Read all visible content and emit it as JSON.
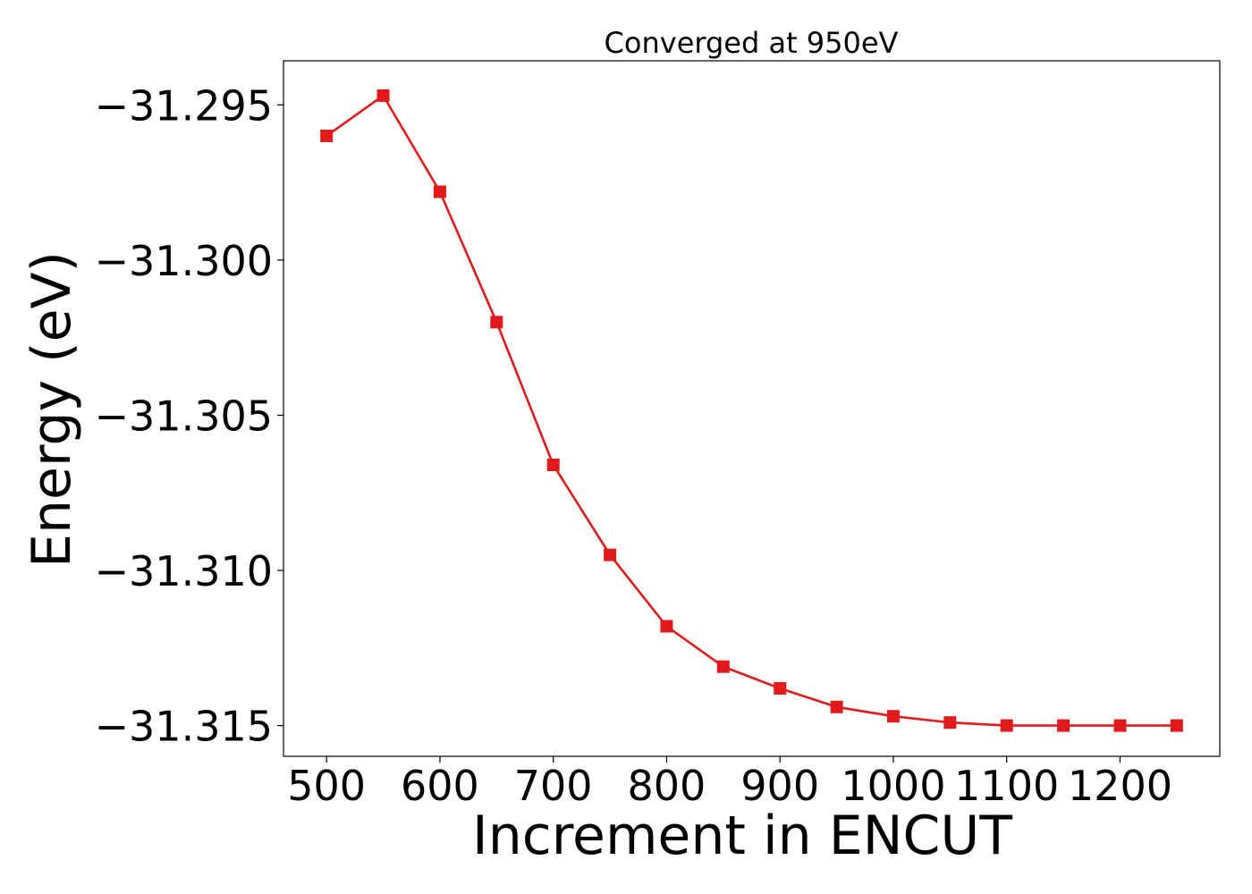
{
  "chart_data": {
    "type": "line",
    "title": "Converged at 950eV",
    "xlabel": "Increment in ENCUT",
    "ylabel": "Energy (eV)",
    "xlim": [
      462,
      1288
    ],
    "ylim": [
      -31.31599,
      -31.29358
    ],
    "xticks": [
      500,
      600,
      700,
      800,
      900,
      1000,
      1100,
      1200
    ],
    "xtick_labels": [
      "500",
      "600",
      "700",
      "800",
      "900",
      "1000",
      "1100",
      "1200"
    ],
    "yticks": [
      -31.295,
      -31.3,
      -31.305,
      -31.31,
      -31.315
    ],
    "ytick_labels": [
      "−31.295",
      "−31.300",
      "−31.305",
      "−31.310",
      "−31.315"
    ],
    "grid": false,
    "series": [
      {
        "marker": "square",
        "color": "#e31a1c",
        "x": [
          500,
          550,
          600,
          650,
          700,
          750,
          800,
          850,
          900,
          950,
          1000,
          1050,
          1100,
          1150,
          1200,
          1250
        ],
        "y": [
          -31.296,
          -31.2947,
          -31.2978,
          -31.302,
          -31.3066,
          -31.3095,
          -31.3118,
          -31.3131,
          -31.3138,
          -31.3144,
          -31.3147,
          -31.3149,
          -31.315,
          -31.315,
          -31.315,
          -31.315
        ]
      }
    ]
  }
}
